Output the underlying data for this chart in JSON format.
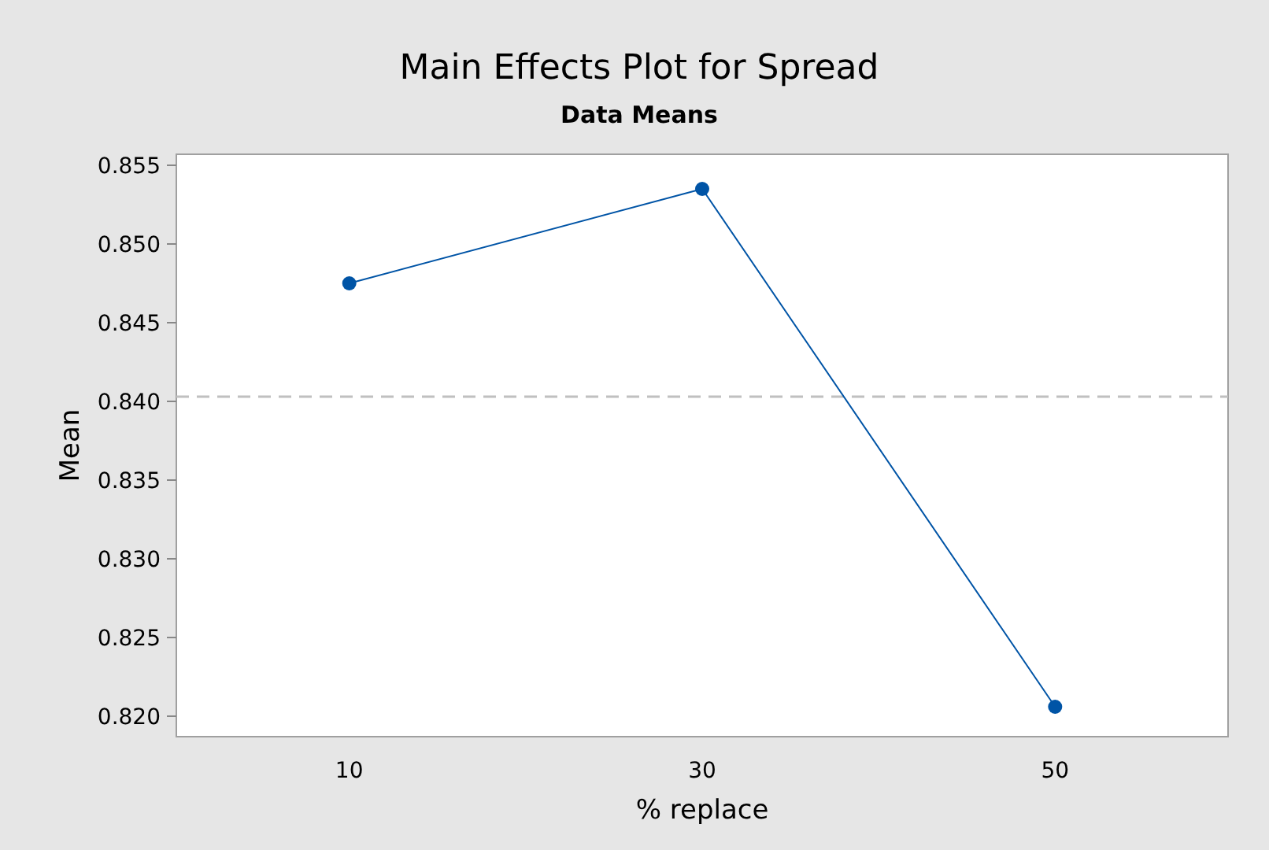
{
  "chart_data": {
    "type": "line",
    "title": "Main Effects Plot for Spread",
    "subtitle": "Data Means",
    "xlabel": "% replace",
    "ylabel": "Mean",
    "categories": [
      "10",
      "30",
      "50"
    ],
    "series": [
      {
        "color": "#0054a6",
        "values": [
          0.8475,
          0.8535,
          0.8206
        ]
      }
    ],
    "ylim": [
      0.8187,
      0.8557
    ],
    "yticks": [
      {
        "value": 0.82,
        "label": "0.820"
      },
      0.825,
      {
        "value": 0.83,
        "label": "0.830"
      },
      0.835,
      {
        "value": 0.84,
        "label": "0.840"
      },
      0.845,
      {
        "value": 0.85,
        "label": "0.850"
      },
      0.855
    ],
    "marker": "circle",
    "line_style": "solid",
    "grid": false,
    "ref_lines": [
      {
        "axis": "y",
        "value": 0.8403,
        "color": "#c0c0c0",
        "line_style": "dashed"
      }
    ]
  }
}
